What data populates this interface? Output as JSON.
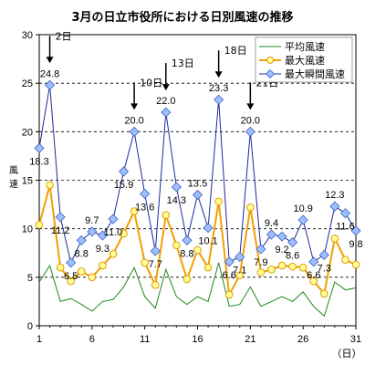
{
  "chart_data": {
    "type": "line",
    "title": "3月の日立市役所における日別風速の推移",
    "ylabel": "風速",
    "xunit": "（日）",
    "ylim": [
      0,
      30
    ],
    "yticks": [
      0,
      5,
      10,
      15,
      20,
      25,
      30
    ],
    "xlim": [
      1,
      31
    ],
    "xticks": [
      1,
      6,
      11,
      16,
      21,
      26,
      31
    ],
    "grid": "horizontal-dashed",
    "legend_position": "top-right",
    "x": [
      1,
      2,
      3,
      4,
      5,
      6,
      7,
      8,
      9,
      10,
      11,
      12,
      13,
      14,
      15,
      16,
      17,
      18,
      19,
      20,
      21,
      22,
      23,
      24,
      25,
      26,
      27,
      28,
      29,
      30,
      31
    ],
    "series": [
      {
        "name": "平均風速",
        "color": "#1a8a1a",
        "marker": "none",
        "values": [
          4.5,
          6.2,
          2.5,
          2.8,
          2.2,
          1.5,
          2.5,
          2.7,
          4.0,
          6.0,
          3.0,
          1.8,
          5.8,
          3.0,
          2.2,
          3.0,
          2.5,
          6.5,
          2.0,
          2.2,
          4.0,
          2.0,
          2.5,
          3.0,
          2.5,
          3.5,
          2.0,
          1.0,
          4.5,
          3.7,
          3.9
        ]
      },
      {
        "name": "最大風速",
        "color": "#f0a000",
        "marker": "circle",
        "values": [
          10.4,
          14.5,
          6.0,
          4.6,
          5.6,
          5.0,
          6.2,
          7.4,
          9.5,
          11.8,
          6.5,
          4.2,
          11.4,
          8.3,
          4.8,
          7.8,
          6.0,
          12.8,
          3.2,
          5.2,
          12.2,
          5.5,
          5.8,
          6.2,
          6.1,
          6.0,
          4.6,
          3.3,
          9.0,
          6.8,
          6.3
        ]
      },
      {
        "name": "最大瞬間風速",
        "color": "#1a2a9a",
        "marker": "diamond",
        "values": [
          18.3,
          24.8,
          11.2,
          6.5,
          8.8,
          9.7,
          9.3,
          11.0,
          15.9,
          20.0,
          13.6,
          7.7,
          22.0,
          14.3,
          8.8,
          13.5,
          10.1,
          23.3,
          6.6,
          7.1,
          20.0,
          7.9,
          9.4,
          9.2,
          8.6,
          10.9,
          6.6,
          7.3,
          12.3,
          11.6,
          9.8
        ]
      }
    ],
    "data_labels": [
      {
        "day": 1,
        "text": "18.3"
      },
      {
        "day": 2,
        "text": "24.8"
      },
      {
        "day": 3,
        "text": "11.2"
      },
      {
        "day": 4,
        "text": "6.5"
      },
      {
        "day": 5,
        "text": "8.8"
      },
      {
        "day": 6,
        "text": "9.7"
      },
      {
        "day": 7,
        "text": "9.3"
      },
      {
        "day": 8,
        "text": "11.0"
      },
      {
        "day": 9,
        "text": "15.9"
      },
      {
        "day": 10,
        "text": "20.0"
      },
      {
        "day": 11,
        "text": "13.6"
      },
      {
        "day": 12,
        "text": "7.7"
      },
      {
        "day": 13,
        "text": "22.0"
      },
      {
        "day": 14,
        "text": "14.3"
      },
      {
        "day": 15,
        "text": "8.8"
      },
      {
        "day": 16,
        "text": "13.5"
      },
      {
        "day": 17,
        "text": "10.1"
      },
      {
        "day": 18,
        "text": "23.3"
      },
      {
        "day": 19,
        "text": "6.6"
      },
      {
        "day": 20,
        "text": "7.1"
      },
      {
        "day": 21,
        "text": "20.0"
      },
      {
        "day": 22,
        "text": "7.9"
      },
      {
        "day": 23,
        "text": "9.4"
      },
      {
        "day": 24,
        "text": "9.2"
      },
      {
        "day": 25,
        "text": "8.6"
      },
      {
        "day": 26,
        "text": "10.9"
      },
      {
        "day": 27,
        "text": "6.6"
      },
      {
        "day": 28,
        "text": "7.3"
      },
      {
        "day": 29,
        "text": "12.3"
      },
      {
        "day": 30,
        "text": "11.6"
      },
      {
        "day": 31,
        "text": "9.8"
      }
    ],
    "annotations": [
      {
        "day": 2,
        "text": "2日"
      },
      {
        "day": 10,
        "text": "10日"
      },
      {
        "day": 13,
        "text": "13日"
      },
      {
        "day": 18,
        "text": "18日"
      },
      {
        "day": 21,
        "text": "21日"
      }
    ]
  }
}
